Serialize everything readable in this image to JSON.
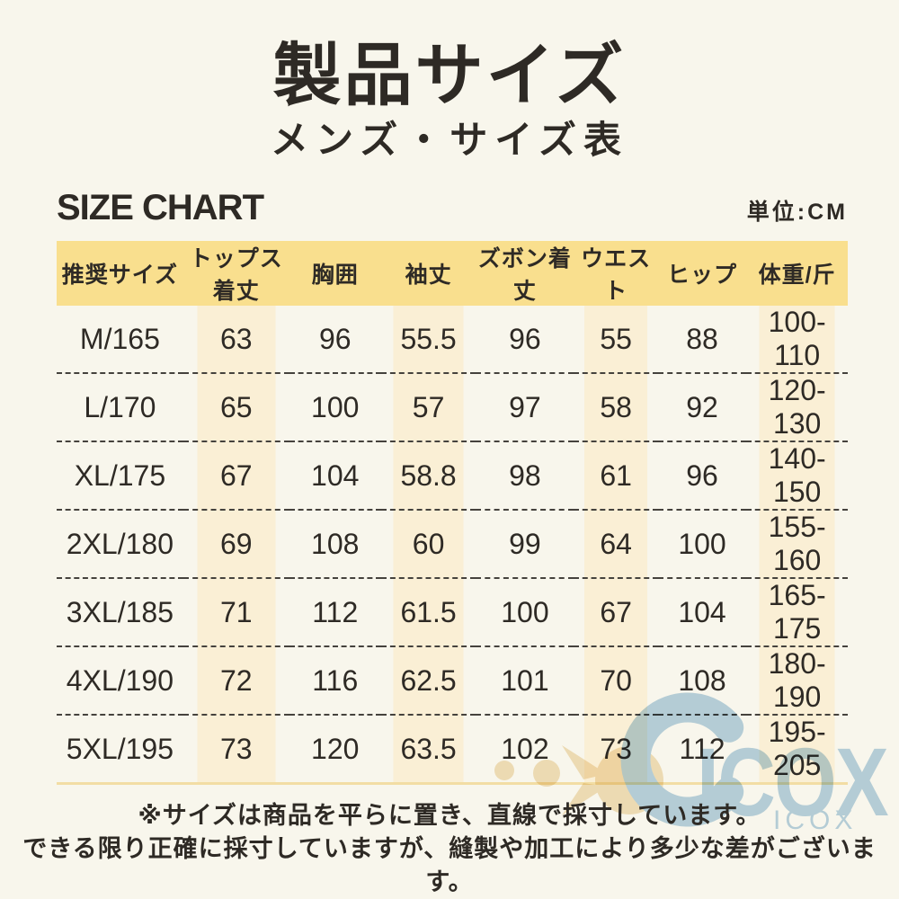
{
  "page": {
    "title": "製品サイズ",
    "subtitle": "メンズ・サイズ表",
    "section_heading": "SIZE CHART",
    "unit_label": "単位:CM"
  },
  "chart_data": {
    "type": "table",
    "title": "製品サイズ メンズ・サイズ表",
    "unit": "CM",
    "columns": [
      "推奨サイズ",
      "トップス着丈",
      "胸囲",
      "袖丈",
      "ズボン着丈",
      "ウエスト",
      "ヒップ",
      "体重/斤"
    ],
    "rows": [
      [
        "M/165",
        "63",
        "96",
        "55.5",
        "96",
        "55",
        "88",
        "100-110"
      ],
      [
        "L/170",
        "65",
        "100",
        "57",
        "97",
        "58",
        "92",
        "120-130"
      ],
      [
        "XL/175",
        "67",
        "104",
        "58.8",
        "98",
        "61",
        "96",
        "140-150"
      ],
      [
        "2XL/180",
        "69",
        "108",
        "60",
        "99",
        "64",
        "100",
        "155-160"
      ],
      [
        "3XL/185",
        "71",
        "112",
        "61.5",
        "100",
        "67",
        "104",
        "165-175"
      ],
      [
        "4XL/190",
        "72",
        "116",
        "62.5",
        "101",
        "70",
        "108",
        "180-190"
      ],
      [
        "5XL/195",
        "73",
        "120",
        "63.5",
        "102",
        "73",
        "112",
        "195-205"
      ]
    ]
  },
  "notes": {
    "line1": "※サイズは商品を平らに置き、直線で採寸しています。",
    "line2": "できる限り正確に採寸していますが、縫製や加工により多少な差がございます。"
  },
  "watermark": {
    "brand_large": "ICOX",
    "brand_small": "ICOX"
  },
  "colors": {
    "background": "#f8f6ec",
    "header_bg": "#f9df8e",
    "stripe_bg": "#faefd5",
    "text": "#2e2a25",
    "watermark_blue": "#b9d4e6",
    "watermark_cream": "#f3e2c1",
    "table_border": "#f2dda4"
  }
}
